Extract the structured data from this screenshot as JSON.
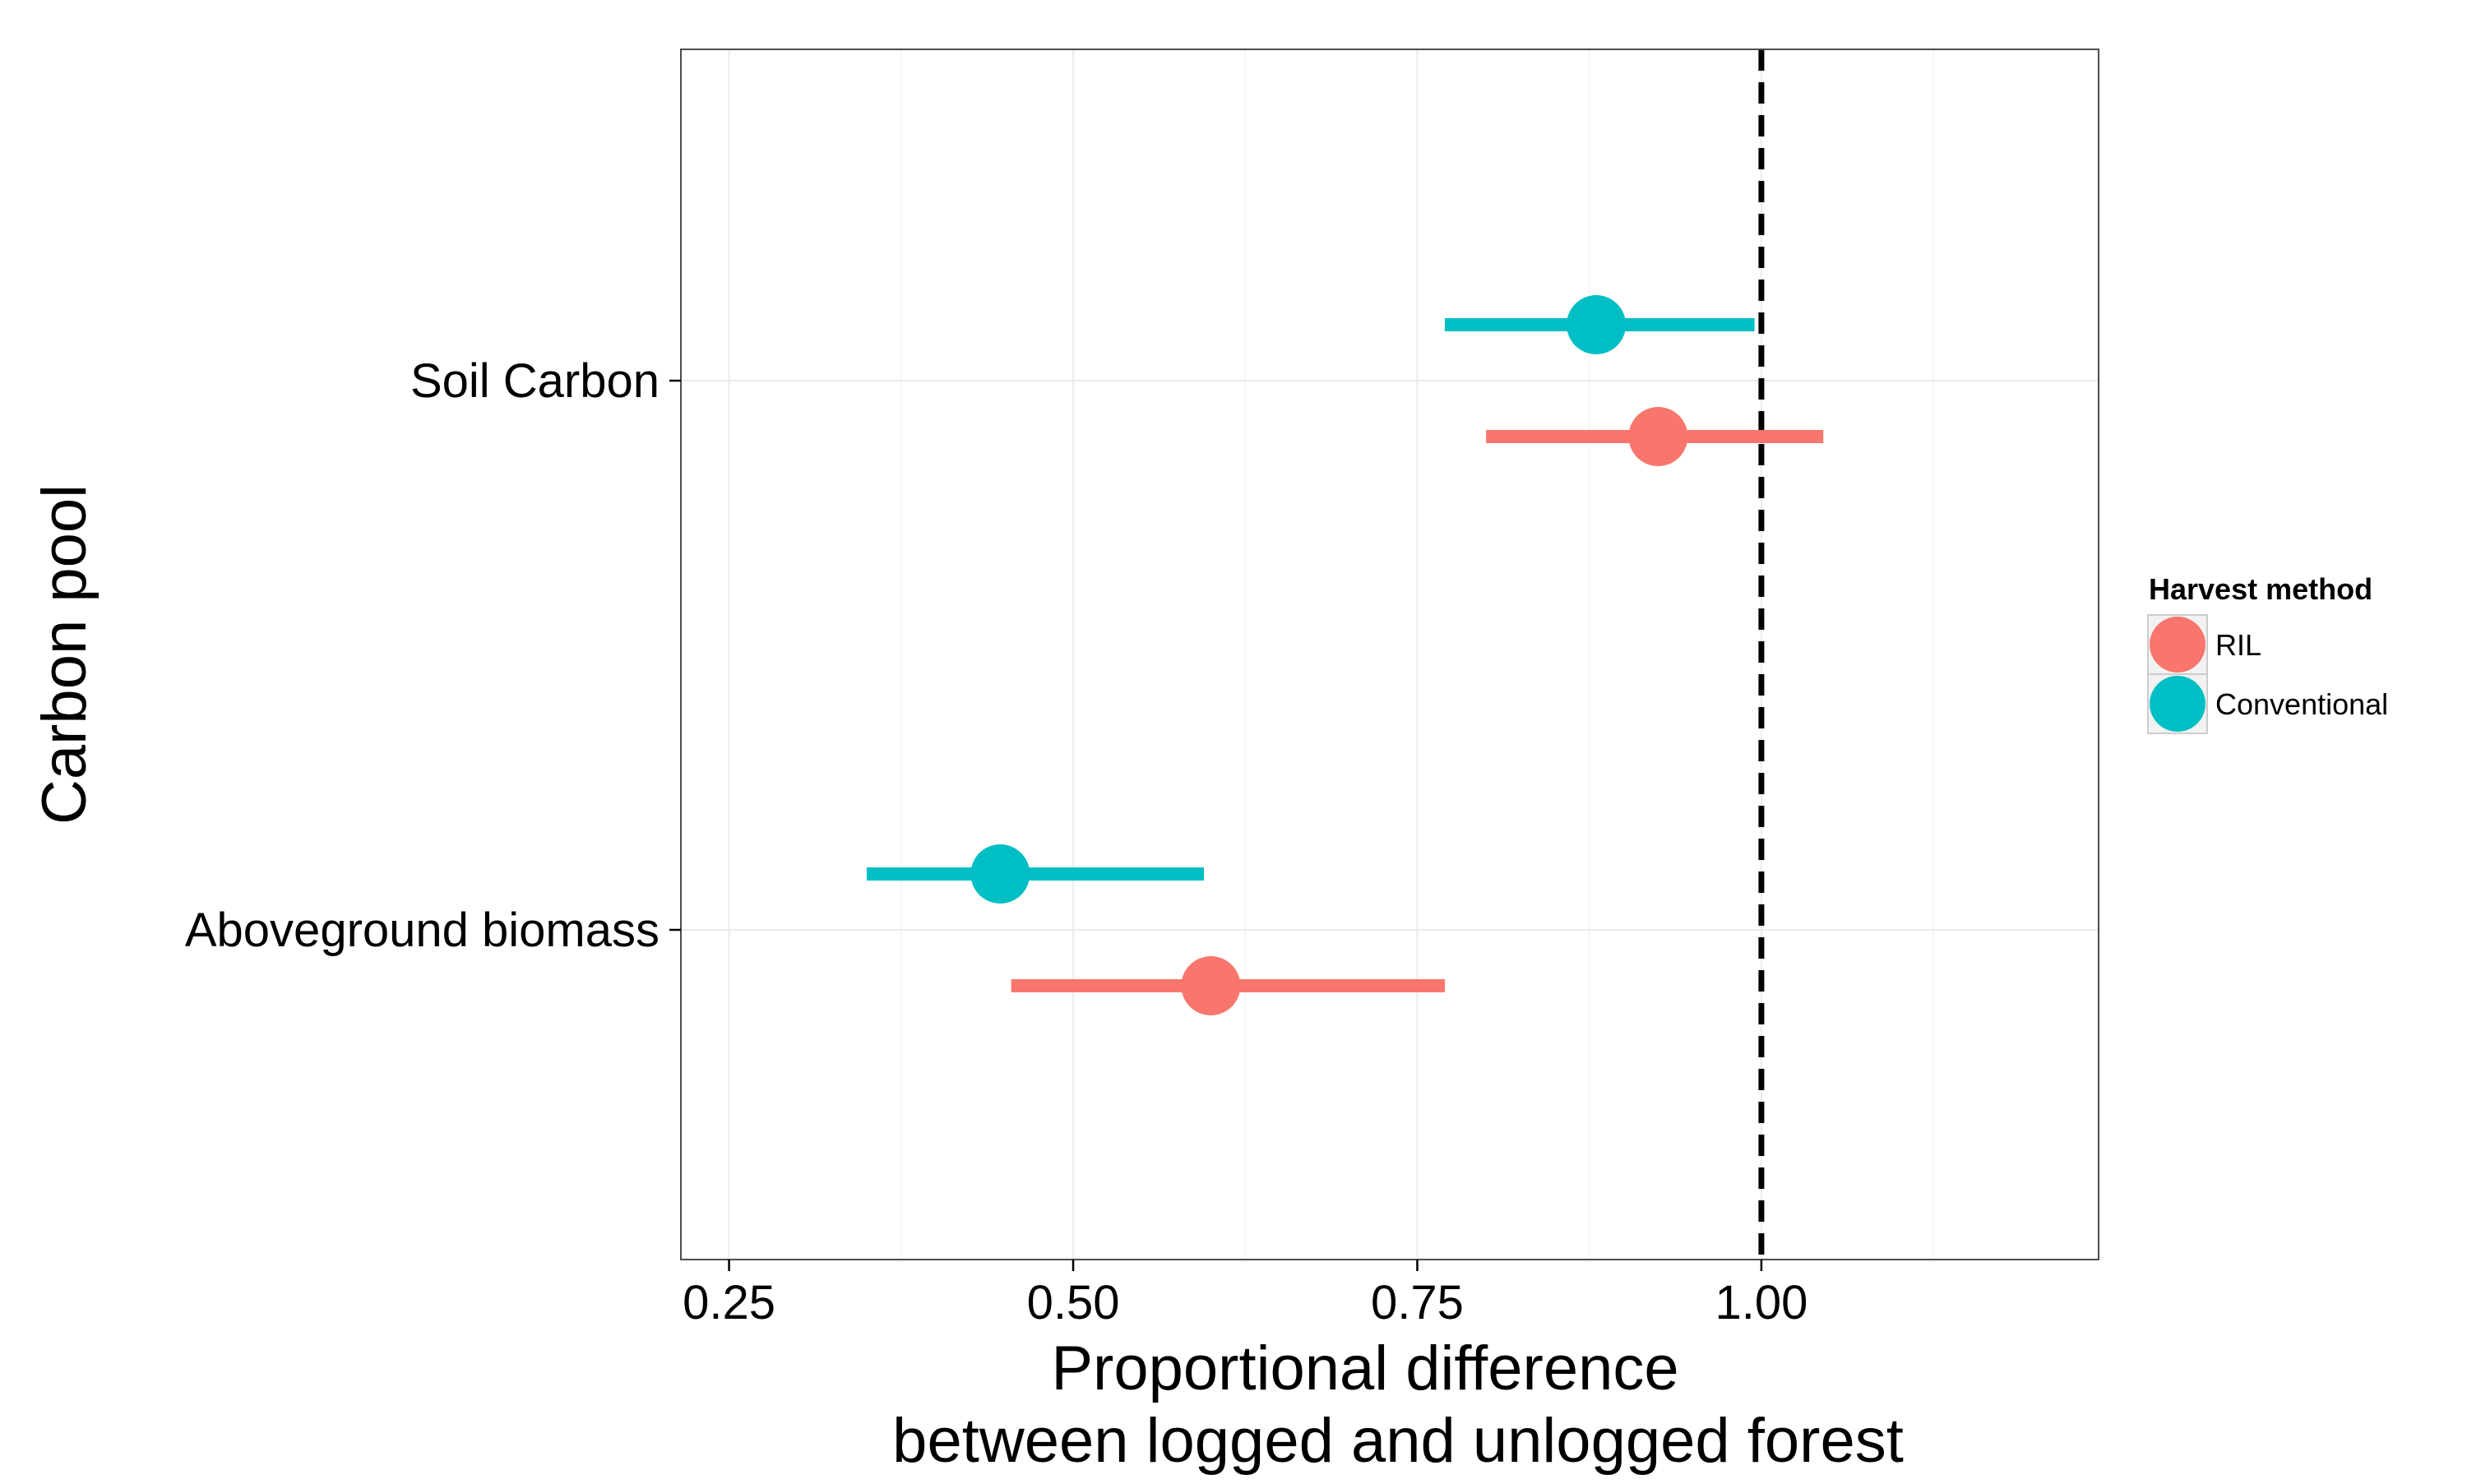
{
  "chart_data": {
    "type": "scatter",
    "subtype": "point-range",
    "xlabel_lines": [
      "Proportional difference",
      "between logged and unlogged forest"
    ],
    "ylabel": "Carbon pool",
    "categories": [
      "Soil Carbon",
      "Aboveground biomass"
    ],
    "xlim": [
      0.215,
      1.245
    ],
    "x_ticks": [
      0.25,
      0.5,
      0.75,
      1.0
    ],
    "x_tick_labels": [
      "0.25",
      "0.50",
      "0.75",
      "1.00"
    ],
    "reference_line": {
      "x": 1.0,
      "style": "dashed"
    },
    "legend": {
      "title": "Harvest method",
      "position": "right"
    },
    "grid": true,
    "series": [
      {
        "name": "RIL",
        "color": "#F8766D",
        "points": [
          {
            "category": "Soil Carbon",
            "estimate": 0.925,
            "lower": 0.8,
            "upper": 1.045
          },
          {
            "category": "Aboveground biomass",
            "estimate": 0.6,
            "lower": 0.455,
            "upper": 0.77
          }
        ]
      },
      {
        "name": "Conventional",
        "color": "#00BFC4",
        "points": [
          {
            "category": "Soil Carbon",
            "estimate": 0.88,
            "lower": 0.77,
            "upper": 0.995
          },
          {
            "category": "Aboveground biomass",
            "estimate": 0.447,
            "lower": 0.35,
            "upper": 0.595
          }
        ]
      }
    ]
  }
}
